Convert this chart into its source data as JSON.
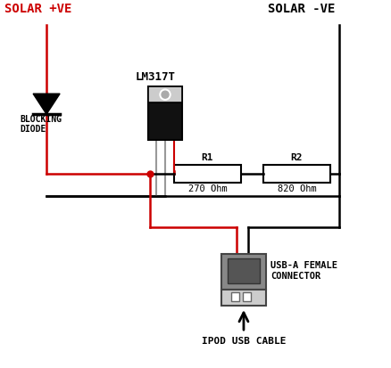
{
  "bg_color": "#ffffff",
  "solar_pos_label": "SOLAR +VE",
  "solar_neg_label": "SOLAR -VE",
  "lm317t_label": "LM317T",
  "r1_label": "R1",
  "r1_val": "270 Ohm",
  "r2_label": "R2",
  "r2_val": "820 Ohm",
  "blocking_diode_label": "BLOCKING\nDIODE",
  "usb_label": "USB-A FEMALE\nCONNECTOR",
  "ipod_label": "IPOD USB CABLE",
  "red": "#cc0000",
  "black": "#000000",
  "gray": "#999999",
  "mid_gray": "#888888",
  "lm_body_color": "#111111",
  "lm_top_color": "#cccccc",
  "usb_body_color": "#888888",
  "usb_inner_color": "#555555",
  "usb_pin_color": "#cccccc",
  "usb_bottom_color": "#cccccc"
}
